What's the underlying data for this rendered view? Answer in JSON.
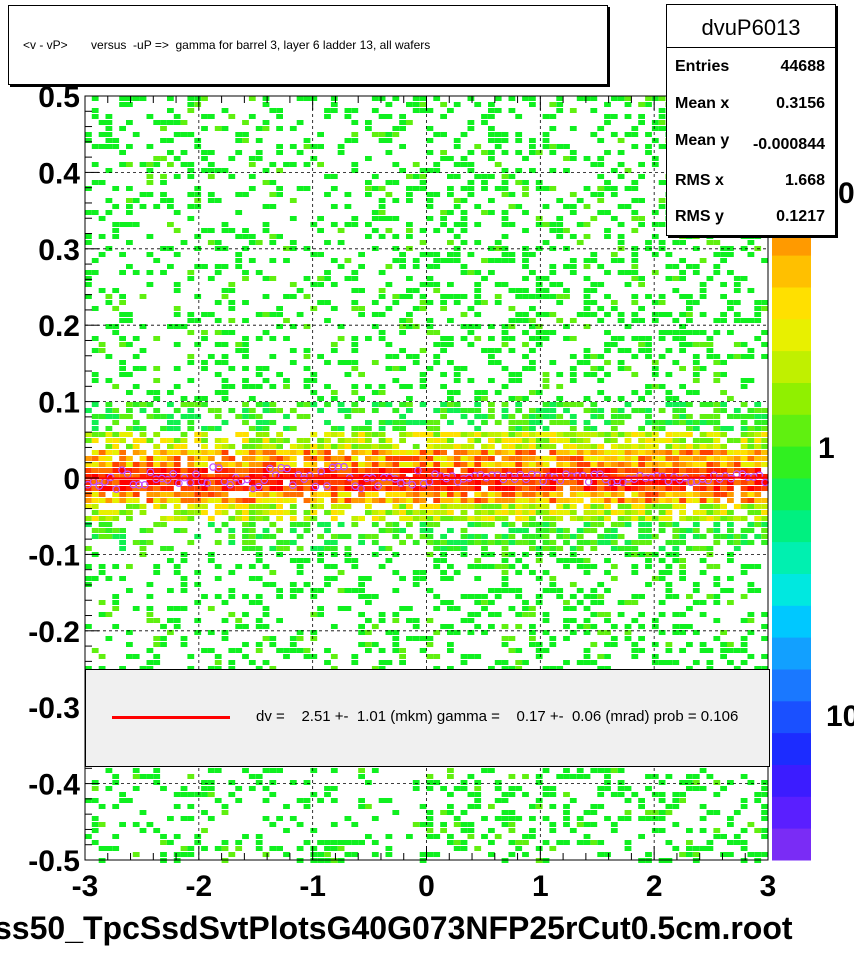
{
  "title": "<v - vP>       versus  -uP =>  gamma for barrel 3, layer 6 ladder 13, all wafers",
  "stats": {
    "name": "dvuP6013",
    "rows": [
      {
        "label": "Entries",
        "value": "44688"
      },
      {
        "label": "Mean x",
        "value": "0.3156"
      },
      {
        "label": "Mean y",
        "value": "-0.000844"
      },
      {
        "label": "RMS x",
        "value": "1.668"
      },
      {
        "label": "RMS y",
        "value": "0.1217"
      }
    ]
  },
  "legend": {
    "text": "dv =    2.51 +-  1.01 (mkm) gamma =    0.17 +-  0.06 (mrad) prob = 0.106",
    "line_color": "#ff0000"
  },
  "footer": "ss50_TpcSsdSvtPlotsG40G073NFP25rCut0.5cm.root",
  "palette_labels": [
    "0",
    "1",
    "10"
  ],
  "chart_data": {
    "type": "heatmap",
    "title": "<v - vP>       versus  -uP =>  gamma for barrel 3, layer 6 ladder 13, all wafers",
    "xlim": [
      -3,
      3
    ],
    "ylim": [
      -0.5,
      0.5
    ],
    "x_ticks": [
      "-3",
      "-2",
      "-1",
      "0",
      "1",
      "2",
      "3"
    ],
    "y_ticks": [
      "-0.5",
      "-0.4",
      "-0.3",
      "-0.2",
      "-0.1",
      "0",
      "0.1",
      "0.2",
      "0.3",
      "0.4",
      "0.5"
    ],
    "grid": true,
    "log_color_scale": true,
    "band_center_y": 0.0,
    "band_width_y": 0.12,
    "fit_line": {
      "slope": 0.00017,
      "intercept": 0.0025,
      "color": "#ff0000"
    }
  }
}
